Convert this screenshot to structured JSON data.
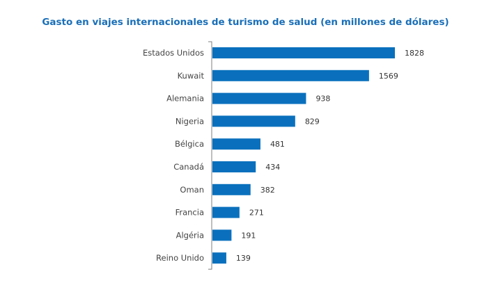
{
  "chart_data": {
    "type": "bar",
    "orientation": "horizontal",
    "title": "Gasto en viajes internacionales de turismo de salud (en millones de dólares)",
    "categories": [
      "Estados Unidos",
      "Kuwait",
      "Alemania",
      "Nigeria",
      "Bélgica",
      "Canadá",
      "Oman",
      "Francia",
      "Algéria",
      "Reino Unido"
    ],
    "values": [
      1828,
      1569,
      938,
      829,
      481,
      434,
      382,
      271,
      191,
      139
    ],
    "value_labels": [
      "1828",
      "1569",
      "938",
      "829",
      "481",
      "434",
      "382",
      "271",
      "191",
      "139"
    ],
    "xlim": [
      0,
      1828
    ],
    "bar_color": "#0a70bd",
    "grid": false,
    "legend": "none"
  }
}
